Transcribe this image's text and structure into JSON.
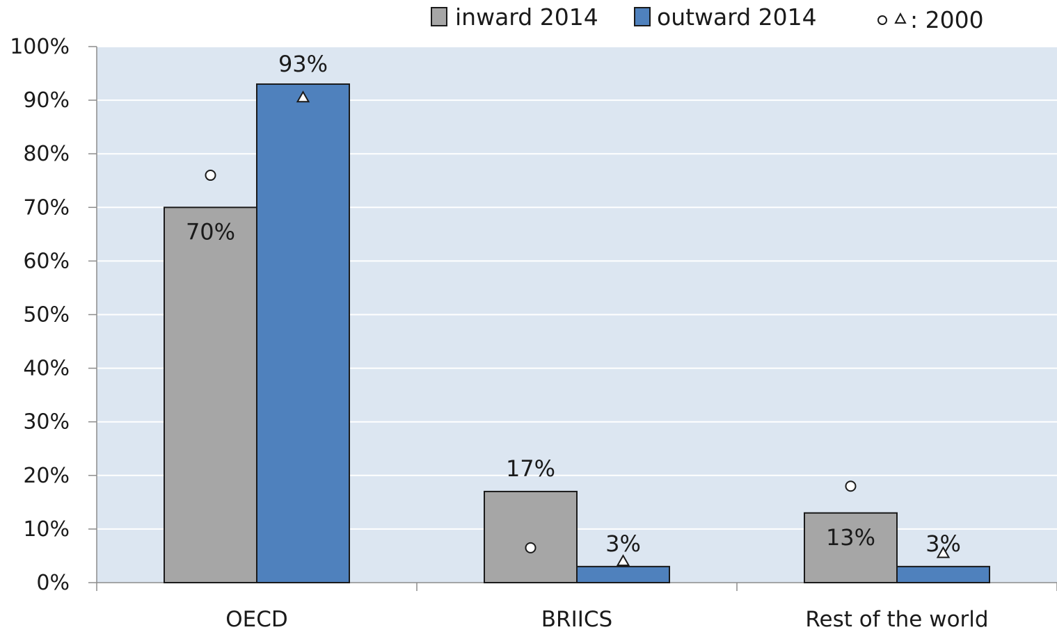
{
  "chart_data": {
    "type": "bar",
    "categories": [
      "OECD",
      "BRIICS",
      "Rest of the world"
    ],
    "series": [
      {
        "name": "inward 2014",
        "values": [
          70,
          17,
          13
        ],
        "color": "#a6a6a6",
        "data_labels": [
          "70%",
          "17%",
          "13%"
        ]
      },
      {
        "name": "outward 2014",
        "values": [
          93,
          3,
          3
        ],
        "color": "#4f81bd",
        "data_labels": [
          "93%",
          "3%",
          "3%"
        ]
      }
    ],
    "markers_2000": {
      "legend_label": "○ △ : 2000",
      "inward": {
        "shape": "circle",
        "values": [
          76,
          6.5,
          18
        ]
      },
      "outward": {
        "shape": "triangle",
        "values": [
          90.5,
          4,
          5.5
        ]
      }
    },
    "ylim": [
      0,
      100
    ],
    "yticks": [
      0,
      10,
      20,
      30,
      40,
      50,
      60,
      70,
      80,
      90,
      100
    ],
    "ytick_labels": [
      "0%",
      "10%",
      "20%",
      "30%",
      "40%",
      "50%",
      "60%",
      "70%",
      "80%",
      "90%",
      "100%"
    ],
    "grid": true,
    "legend_position": "top",
    "plot_background": "#dce6f1",
    "title": "",
    "xlabel": "",
    "ylabel": ""
  }
}
